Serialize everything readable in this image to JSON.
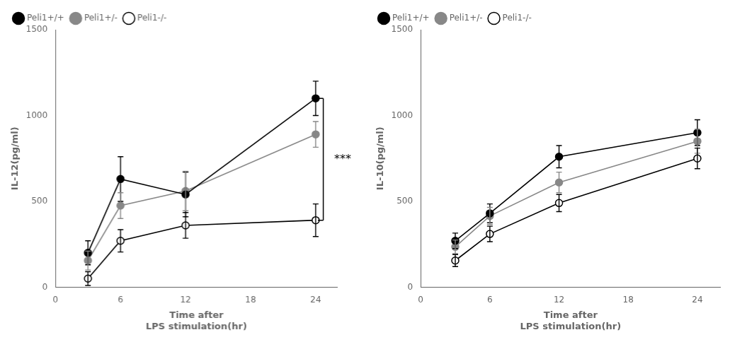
{
  "chart_data": [
    {
      "type": "line",
      "xlabel": "Time after\nLPS stimulation(hr)",
      "ylabel": "IL-12(pg/ml)",
      "x": [
        3,
        6,
        12,
        24
      ],
      "xlim": [
        0,
        26
      ],
      "xticks": [
        0,
        6,
        12,
        18,
        24
      ],
      "ylim": [
        0,
        1500
      ],
      "yticks": [
        0,
        500,
        1000,
        1500
      ],
      "grid": false,
      "legend": "upper left",
      "series": [
        {
          "name": "Peli1+/+",
          "color": "#000000",
          "marker": "circle",
          "values": [
            200,
            630,
            540,
            1100
          ],
          "errors": [
            70,
            130,
            130,
            100
          ]
        },
        {
          "name": "Peli1+/-",
          "color": "#888888",
          "marker": "circle",
          "values": [
            155,
            475,
            560,
            890
          ],
          "errors": [
            55,
            75,
            115,
            75
          ]
        },
        {
          "name": "Peli1-/-",
          "color": "#000000",
          "marker": "open_circle",
          "values": [
            50,
            270,
            360,
            390
          ],
          "errors": [
            40,
            65,
            75,
            95
          ]
        }
      ],
      "annotations": [
        {
          "text": "***",
          "x": 24.7,
          "y_bottom": 390,
          "y_top": 1100
        }
      ]
    },
    {
      "type": "line",
      "xlabel": "Time after\nLPS stimulation(hr)",
      "ylabel": "IL-10(pg/ml)",
      "x": [
        3,
        6,
        12,
        24
      ],
      "xlim": [
        0,
        26
      ],
      "xticks": [
        0,
        6,
        12,
        18,
        24
      ],
      "ylim": [
        0,
        1500
      ],
      "yticks": [
        0,
        500,
        1000,
        1500
      ],
      "grid": false,
      "legend": "upper left",
      "series": [
        {
          "name": "Peli1+/+",
          "color": "#000000",
          "marker": "circle",
          "values": [
            270,
            430,
            760,
            900
          ],
          "errors": [
            45,
            55,
            65,
            75
          ]
        },
        {
          "name": "Peli1+/-",
          "color": "#888888",
          "marker": "circle",
          "values": [
            235,
            415,
            610,
            850
          ],
          "errors": [
            40,
            50,
            60,
            70
          ]
        },
        {
          "name": "Peli1-/-",
          "color": "#000000",
          "marker": "open_circle",
          "values": [
            155,
            310,
            490,
            750
          ],
          "errors": [
            35,
            45,
            50,
            60
          ]
        }
      ]
    }
  ]
}
